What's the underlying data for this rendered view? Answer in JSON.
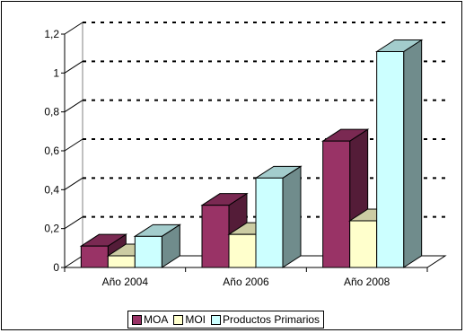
{
  "chart_data": {
    "type": "bar",
    "style": "3d-clustered-column",
    "categories": [
      "Año 2004",
      "Año 2006",
      "Año 2008"
    ],
    "series": [
      {
        "name": "MOA",
        "color": "#993366",
        "values": [
          0.11,
          0.32,
          0.65
        ]
      },
      {
        "name": "MOI",
        "color": "#FFFFCC",
        "values": [
          0.06,
          0.17,
          0.24
        ]
      },
      {
        "name": "Productos Primarios",
        "color": "#CCFFFF",
        "values": [
          0.16,
          0.46,
          1.11
        ]
      }
    ],
    "y_ticks": [
      "0",
      "0,2",
      "0,4",
      "0,6",
      "0,8",
      "1",
      "1,2"
    ],
    "ylim": [
      0,
      1.2
    ],
    "grid": "dashed horizontal",
    "legend_position": "bottom"
  }
}
